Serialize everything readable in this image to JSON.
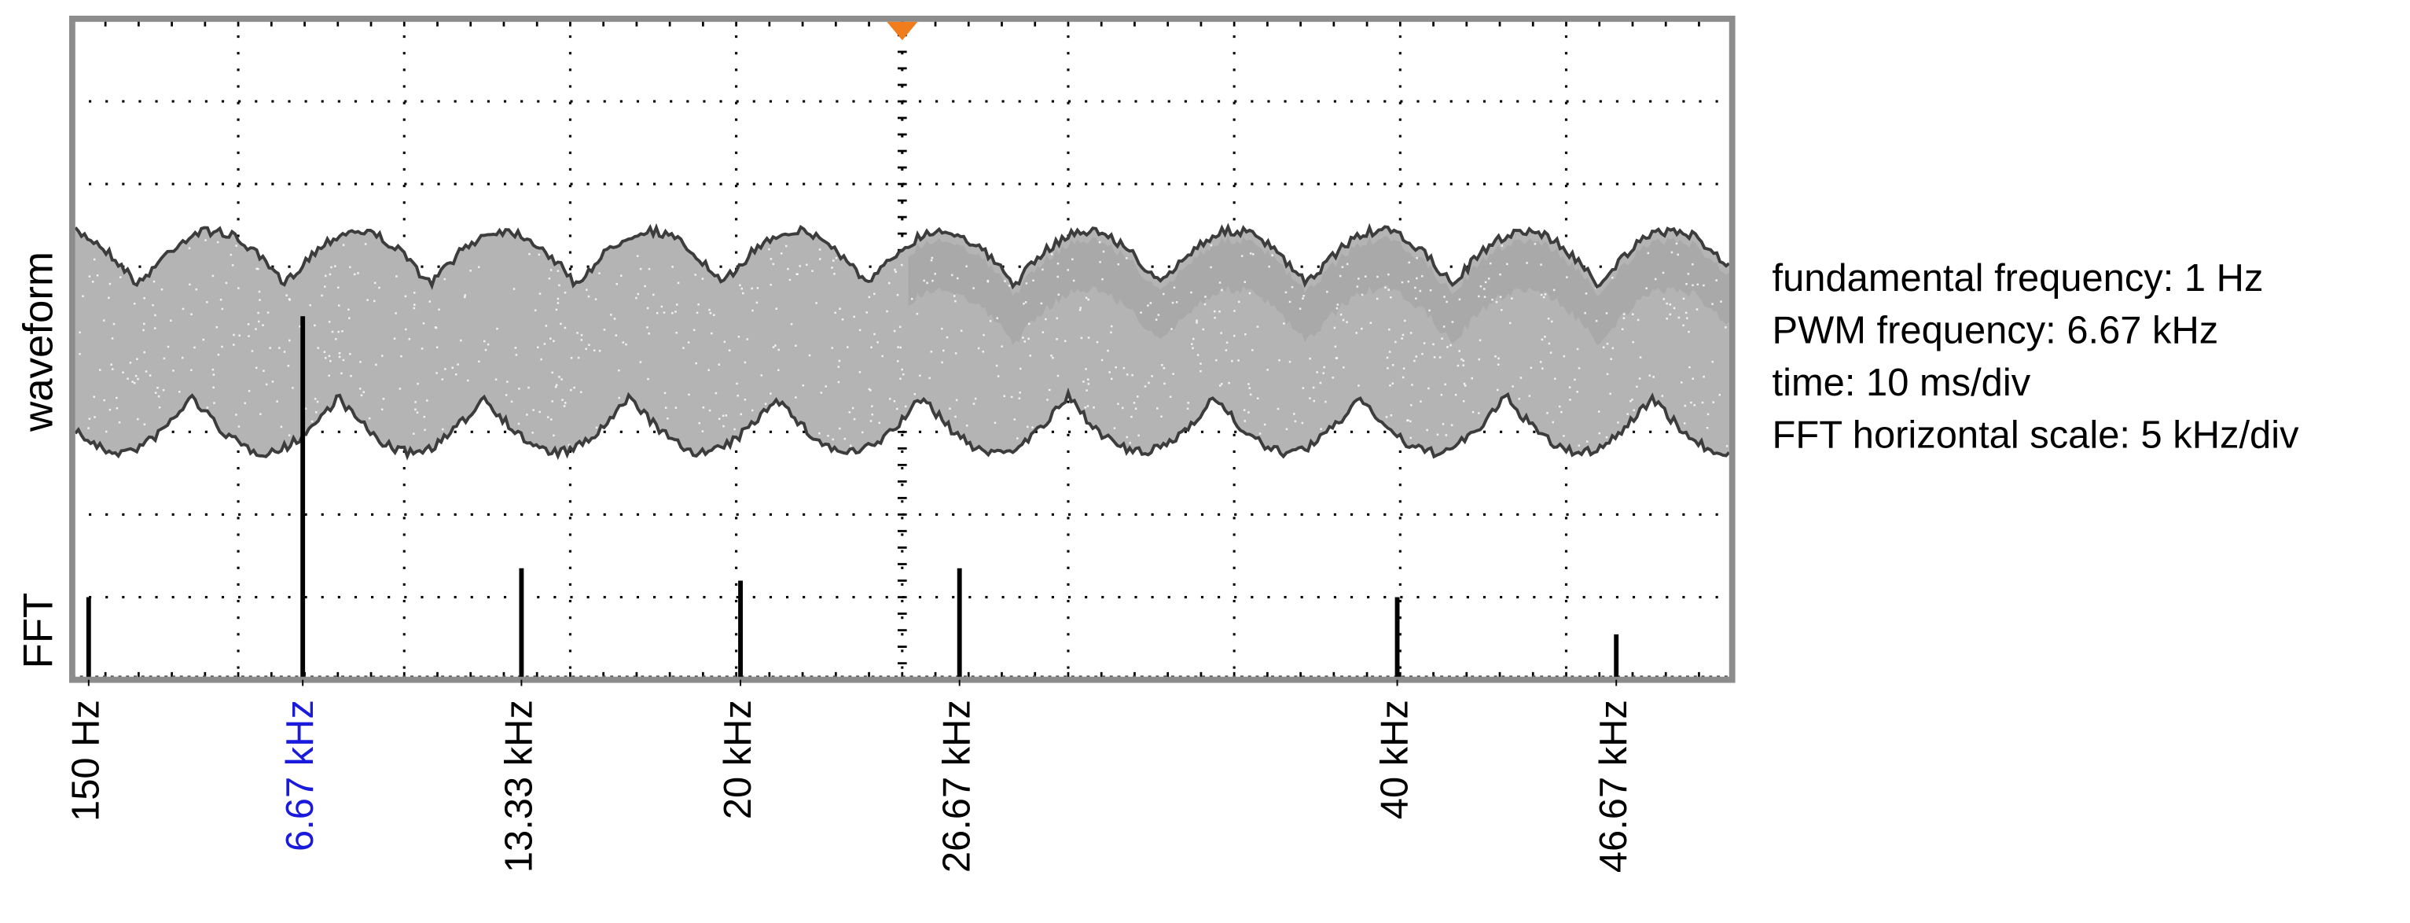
{
  "chart_data": {
    "type": "spectrum",
    "waveform_label": "waveform",
    "fft_label": "FFT",
    "annotations": [
      "fundamental frequency: 1 Hz",
      "PWM frequency: 6.67 kHz",
      "time: 10 ms/div",
      "FFT horizontal scale: 5 kHz/div"
    ],
    "x": [
      150,
      6670,
      13330,
      20000,
      26670,
      40000,
      46670
    ],
    "values": [
      1.0,
      4.4,
      1.35,
      1.2,
      1.35,
      1.0,
      0.55
    ],
    "color": "#000000",
    "xlim": [
      -350,
      50200
    ],
    "ylim": [
      0,
      8
    ],
    "xticks": [
      {
        "value": 150,
        "label": "150 Hz",
        "color": "#000000"
      },
      {
        "value": 6670,
        "label": "6.67 kHz",
        "color": "#1a1adc"
      },
      {
        "value": 13330,
        "label": "13.33 kHz",
        "color": "#000000"
      },
      {
        "value": 20000,
        "label": "20 kHz",
        "color": "#000000"
      },
      {
        "value": 26670,
        "label": "26.67 kHz",
        "color": "#000000"
      },
      {
        "value": 40000,
        "label": "40 kHz",
        "color": "#000000"
      },
      {
        "value": 46670,
        "label": "46.67 kHz",
        "color": "#000000"
      }
    ],
    "grid": true
  }
}
